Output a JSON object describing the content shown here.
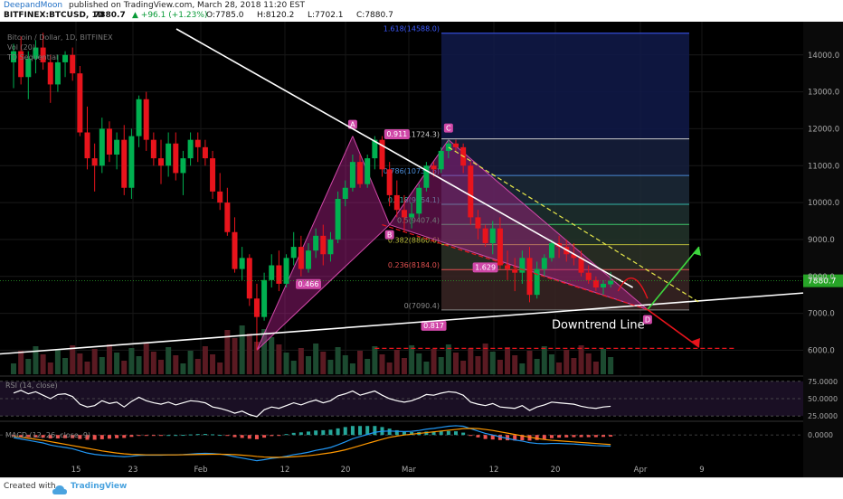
{
  "header": {
    "author": "DeepandMoon",
    "published_text": "published on TradingView.com, March 28, 2018 11:20 EST",
    "symbol": "BITFINEX:BTCUSD, 1D",
    "last": "7880.7",
    "change": "▲ +96.1 (+1.23%)",
    "open": "O:7785.0",
    "high": "H:8120.2",
    "low": "L:7702.1",
    "close": "C:7880.7"
  },
  "legend": {
    "line1": "Bitcoin / Dollar, 1D, BITFINEX",
    "line2": "Vol (20)",
    "line3": "TD Sequential"
  },
  "footer": {
    "created_with": "Created with",
    "brand": "TradingView"
  },
  "colors": {
    "up": "#00b050",
    "down": "#e8141c",
    "bg": "#000000",
    "pattern": "#b0208a",
    "fib_bg": "#0a0f2a",
    "price_label_bg": "#27a427"
  },
  "chart_data": {
    "type": "candlestick",
    "title": "Bitcoin / Dollar, 1D, BITFINEX",
    "ylim": [
      5300,
      14900
    ],
    "y_ticks": [
      "14000.0",
      "13000.0",
      "12000.0",
      "11000.0",
      "10000.0",
      "9000.0",
      "8000.0",
      "7000.0",
      "6000.0"
    ],
    "x_ticks": [
      "15",
      "23",
      "Feb",
      "12",
      "20",
      "Mar",
      "12",
      "20",
      "Apr",
      "9"
    ],
    "current_price": "7880.7",
    "ohlc": [
      [
        13800,
        14300,
        13100,
        14100
      ],
      [
        14100,
        14500,
        13200,
        13400
      ],
      [
        13400,
        14100,
        12800,
        13900
      ],
      [
        13900,
        14400,
        13500,
        14200
      ],
      [
        14200,
        14600,
        13600,
        13800
      ],
      [
        13800,
        14000,
        12700,
        13200
      ],
      [
        13200,
        14000,
        13000,
        13800
      ],
      [
        13800,
        14100,
        13400,
        14000
      ],
      [
        14000,
        14200,
        13300,
        13500
      ],
      [
        13500,
        13700,
        11800,
        11900
      ],
      [
        11900,
        12600,
        10900,
        11200
      ],
      [
        11200,
        11600,
        10300,
        11000
      ],
      [
        11000,
        12300,
        10800,
        12000
      ],
      [
        12000,
        12200,
        11100,
        11300
      ],
      [
        11300,
        11900,
        10900,
        11700
      ],
      [
        11700,
        12100,
        10200,
        10400
      ],
      [
        10400,
        12000,
        10100,
        11800
      ],
      [
        11800,
        12900,
        11500,
        12800
      ],
      [
        12800,
        13000,
        11400,
        11700
      ],
      [
        11700,
        11900,
        11000,
        11200
      ],
      [
        11200,
        11700,
        10500,
        11000
      ],
      [
        11000,
        11900,
        10700,
        11600
      ],
      [
        11600,
        11900,
        10600,
        10800
      ],
      [
        10800,
        11400,
        10200,
        11200
      ],
      [
        11200,
        11900,
        11000,
        11700
      ],
      [
        11700,
        11900,
        11100,
        11500
      ],
      [
        11500,
        11700,
        11000,
        11200
      ],
      [
        11200,
        11400,
        10100,
        10300
      ],
      [
        10300,
        10800,
        9800,
        10000
      ],
      [
        10000,
        10400,
        9100,
        9200
      ],
      [
        9200,
        9600,
        8100,
        8200
      ],
      [
        8200,
        8800,
        7900,
        8500
      ],
      [
        8500,
        8600,
        7200,
        7400
      ],
      [
        7400,
        7800,
        6000,
        6900
      ],
      [
        6900,
        8100,
        6800,
        7900
      ],
      [
        7900,
        8600,
        7700,
        8300
      ],
      [
        8300,
        8700,
        7600,
        7800
      ],
      [
        7800,
        8600,
        7700,
        8500
      ],
      [
        8500,
        9200,
        8300,
        8800
      ],
      [
        8800,
        9100,
        8000,
        8200
      ],
      [
        8200,
        8900,
        8100,
        8700
      ],
      [
        8700,
        9300,
        8500,
        9100
      ],
      [
        9100,
        9400,
        8300,
        8600
      ],
      [
        8600,
        9200,
        8400,
        9000
      ],
      [
        9000,
        10300,
        8900,
        10100
      ],
      [
        10100,
        10600,
        9900,
        10400
      ],
      [
        10400,
        11300,
        10300,
        11100
      ],
      [
        11100,
        11300,
        10400,
        10500
      ],
      [
        10500,
        11300,
        10400,
        11200
      ],
      [
        11200,
        11800,
        10900,
        11700
      ],
      [
        11700,
        11800,
        10700,
        10900
      ],
      [
        10900,
        11100,
        9900,
        10200
      ],
      [
        10200,
        10600,
        9600,
        9800
      ],
      [
        9800,
        10200,
        9200,
        9600
      ],
      [
        9600,
        10000,
        9300,
        9700
      ],
      [
        9700,
        10500,
        9600,
        10400
      ],
      [
        10400,
        11100,
        10300,
        11000
      ],
      [
        11000,
        11100,
        10700,
        10900
      ],
      [
        10900,
        11500,
        10800,
        11400
      ],
      [
        11400,
        11700,
        11200,
        11600
      ],
      [
        11600,
        11700,
        11400,
        11500
      ],
      [
        11500,
        11600,
        10800,
        11000
      ],
      [
        11000,
        11100,
        9400,
        9600
      ],
      [
        9600,
        9800,
        9000,
        9300
      ],
      [
        9300,
        9400,
        8800,
        8900
      ],
      [
        8900,
        9500,
        8600,
        9300
      ],
      [
        9300,
        9600,
        8200,
        8300
      ],
      [
        8300,
        8700,
        7900,
        8200
      ],
      [
        8200,
        8500,
        7600,
        8100
      ],
      [
        8100,
        8700,
        7800,
        8500
      ],
      [
        8500,
        8800,
        7300,
        7500
      ],
      [
        7500,
        8400,
        7400,
        8200
      ],
      [
        8200,
        8600,
        8000,
        8500
      ],
      [
        8500,
        9000,
        8400,
        8900
      ],
      [
        8900,
        9100,
        8500,
        8800
      ],
      [
        8800,
        9000,
        8400,
        8600
      ],
      [
        8600,
        8900,
        8300,
        8500
      ],
      [
        8500,
        8700,
        8000,
        8100
      ],
      [
        8100,
        8300,
        7800,
        7900
      ],
      [
        7900,
        8000,
        7600,
        7700
      ],
      [
        7700,
        7900,
        7500,
        7800
      ],
      [
        7785,
        8120,
        7702,
        7880
      ]
    ],
    "rsi": {
      "label": "RSI (14, close)",
      "levels": [
        "75.0000",
        "50.0000",
        "25.0000"
      ],
      "values": [
        58,
        62,
        57,
        60,
        55,
        50,
        56,
        57,
        53,
        42,
        38,
        40,
        47,
        43,
        45,
        38,
        46,
        52,
        47,
        44,
        42,
        45,
        41,
        44,
        47,
        46,
        44,
        38,
        36,
        33,
        29,
        32,
        27,
        24,
        34,
        38,
        36,
        40,
        44,
        41,
        45,
        48,
        44,
        47,
        54,
        57,
        61,
        55,
        58,
        61,
        55,
        50,
        47,
        45,
        47,
        51,
        56,
        55,
        58,
        60,
        59,
        55,
        45,
        42,
        40,
        43,
        38,
        37,
        36,
        40,
        33,
        38,
        41,
        45,
        44,
        43,
        42,
        39,
        37,
        36,
        38,
        39
      ]
    },
    "macd": {
      "label": "MACD (12, 26, close, 9)",
      "level": "0.0000",
      "macd": [
        -100,
        -150,
        -200,
        -250,
        -300,
        -380,
        -430,
        -470,
        -520,
        -600,
        -680,
        -730,
        -760,
        -780,
        -800,
        -820,
        -800,
        -770,
        -760,
        -760,
        -760,
        -750,
        -750,
        -740,
        -720,
        -700,
        -690,
        -700,
        -720,
        -760,
        -820,
        -870,
        -920,
        -970,
        -930,
        -880,
        -850,
        -800,
        -740,
        -700,
        -650,
        -580,
        -530,
        -470,
        -370,
        -260,
        -140,
        -60,
        20,
        100,
        140,
        150,
        140,
        130,
        140,
        170,
        220,
        250,
        290,
        330,
        350,
        330,
        240,
        150,
        60,
        0,
        -70,
        -130,
        -190,
        -230,
        -290,
        -320,
        -330,
        -320,
        -320,
        -330,
        -340,
        -360,
        -380,
        -400,
        -410,
        -420
      ],
      "signal": [
        -50,
        -80,
        -120,
        -160,
        -200,
        -250,
        -300,
        -350,
        -400,
        -450,
        -500,
        -550,
        -600,
        -640,
        -680,
        -710,
        -730,
        -740,
        -750,
        -750,
        -750,
        -750,
        -750,
        -745,
        -740,
        -735,
        -730,
        -725,
        -725,
        -730,
        -740,
        -760,
        -780,
        -810,
        -830,
        -840,
        -840,
        -835,
        -820,
        -800,
        -780,
        -750,
        -710,
        -670,
        -620,
        -560,
        -480,
        -400,
        -320,
        -240,
        -160,
        -90,
        -40,
        0,
        30,
        60,
        90,
        120,
        150,
        180,
        210,
        240,
        250,
        240,
        210,
        170,
        120,
        70,
        20,
        -30,
        -80,
        -130,
        -170,
        -200,
        -220,
        -240,
        -260,
        -280,
        -300,
        -320,
        -340,
        -360
      ]
    },
    "harmonic": {
      "points": [
        "A",
        "B",
        "C",
        "D"
      ],
      "ratios": [
        "0.466",
        "0.911",
        "1.629",
        "0.817"
      ]
    },
    "fibonacci": {
      "levels": [
        "1.618(14588.0)",
        "1(11724.3)",
        "0.786(10732.6)",
        "0.618(9954.1)",
        "0.5(9407.4)",
        "0.382(8860.6)",
        "0.236(8184.0)",
        "0(7090.4)"
      ]
    },
    "annotation": "Downtrend Line"
  }
}
